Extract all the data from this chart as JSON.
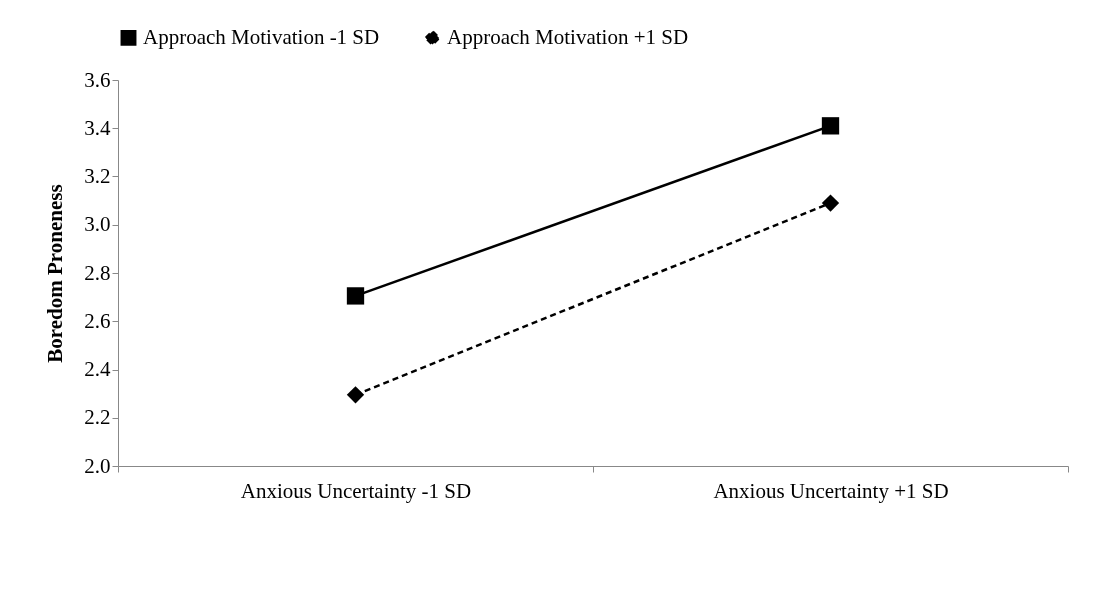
{
  "chart_data": {
    "type": "line",
    "ylabel": "Boredom Proneness",
    "categories": [
      "Anxious Uncertainty -1 SD",
      "Anxious Uncertainty +1 SD"
    ],
    "series": [
      {
        "name": "Approach Motivation -1 SD",
        "color": "#000000",
        "values": [
          2.705,
          3.41
        ],
        "marker": "square",
        "line_style": "solid"
      },
      {
        "name": "Approach Motivation +1 SD",
        "color": "#000000",
        "values": [
          2.295,
          3.09
        ],
        "marker": "diamond",
        "line_style": "dashed"
      }
    ],
    "ylim": [
      2,
      3.6
    ],
    "yticks": [
      {
        "value": 2,
        "label": "2.0"
      },
      2.2,
      2.4,
      2.6,
      2.8,
      {
        "value": 3,
        "label": "3.0"
      },
      3.2,
      3.4,
      3.6
    ],
    "grid": false,
    "legend": "top"
  }
}
